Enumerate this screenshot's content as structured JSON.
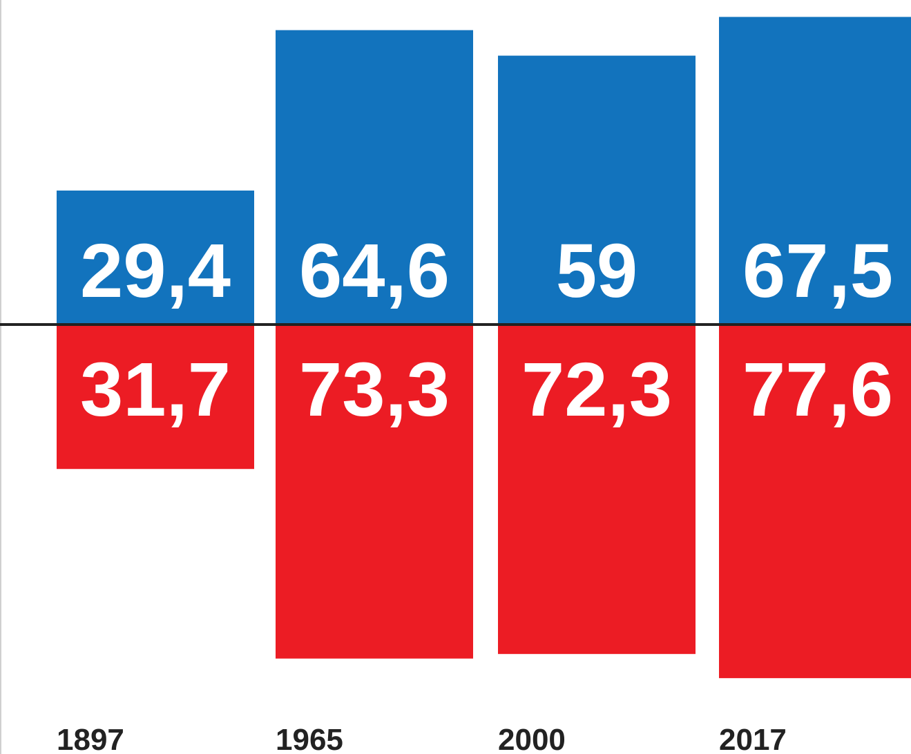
{
  "chart_data": {
    "type": "bar",
    "categories": [
      "1897",
      "1965",
      "2000",
      "2017"
    ],
    "series": [
      {
        "values": [
          29.4,
          64.6,
          59,
          67.5
        ],
        "labels": [
          "29,4",
          "64,6",
          "59",
          "67,5"
        ],
        "color": "#1273bd",
        "direction": "up"
      },
      {
        "values": [
          31.7,
          73.3,
          72.3,
          77.6
        ],
        "labels": [
          "31,7",
          "73,3",
          "72,3",
          "77,6"
        ],
        "color": "#ec1c24",
        "direction": "down"
      }
    ],
    "baseline_color": "#222222"
  }
}
